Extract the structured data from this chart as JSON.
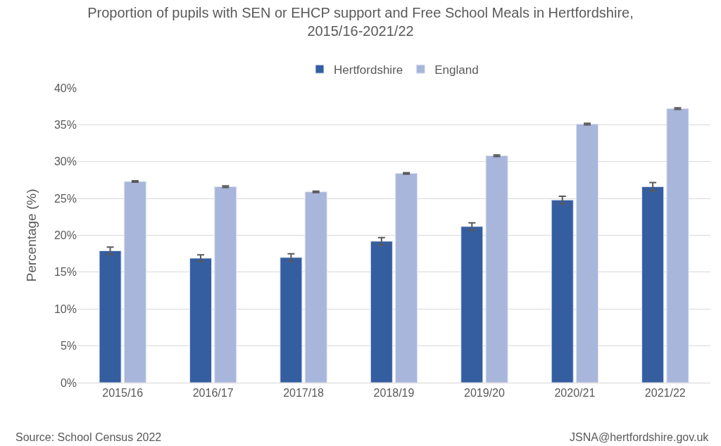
{
  "chart_data": {
    "type": "bar",
    "title": "Proportion of pupils with SEN or EHCP support and Free School Meals in Hertfordshire,\n2015/16-2021/22",
    "ylabel": "Percentage (%)",
    "categories": [
      "2015/16",
      "2016/17",
      "2017/18",
      "2018/19",
      "2019/20",
      "2020/21",
      "2021/22"
    ],
    "series": [
      {
        "name": "Hertfordshire",
        "color": "#355ea0",
        "values": [
          17.9,
          16.9,
          17.0,
          19.2,
          21.2,
          24.8,
          26.6
        ],
        "errors": [
          0.5,
          0.45,
          0.5,
          0.5,
          0.5,
          0.5,
          0.55
        ]
      },
      {
        "name": "England",
        "color": "#a9b6db",
        "values": [
          27.3,
          26.6,
          25.9,
          28.4,
          30.8,
          35.1,
          37.2
        ],
        "errors": [
          0.1,
          0.1,
          0.1,
          0.1,
          0.1,
          0.1,
          0.1
        ]
      }
    ],
    "ylim": [
      0,
      40
    ],
    "yticks": [
      {
        "value": 0,
        "label": "0%"
      },
      {
        "value": 5,
        "label": "5%"
      },
      {
        "value": 10,
        "label": "10%"
      },
      {
        "value": 15,
        "label": "15%"
      },
      {
        "value": 20,
        "label": "20%"
      },
      {
        "value": 25,
        "label": "25%"
      },
      {
        "value": 30,
        "label": "30%"
      },
      {
        "value": 35,
        "label": "35%"
      },
      {
        "value": 40,
        "label": "40%"
      }
    ],
    "grid": "y",
    "legend": "top",
    "annotations": [
      "Source: School Census 2022",
      "JSNA@hertfordshire.gov.uk"
    ]
  }
}
